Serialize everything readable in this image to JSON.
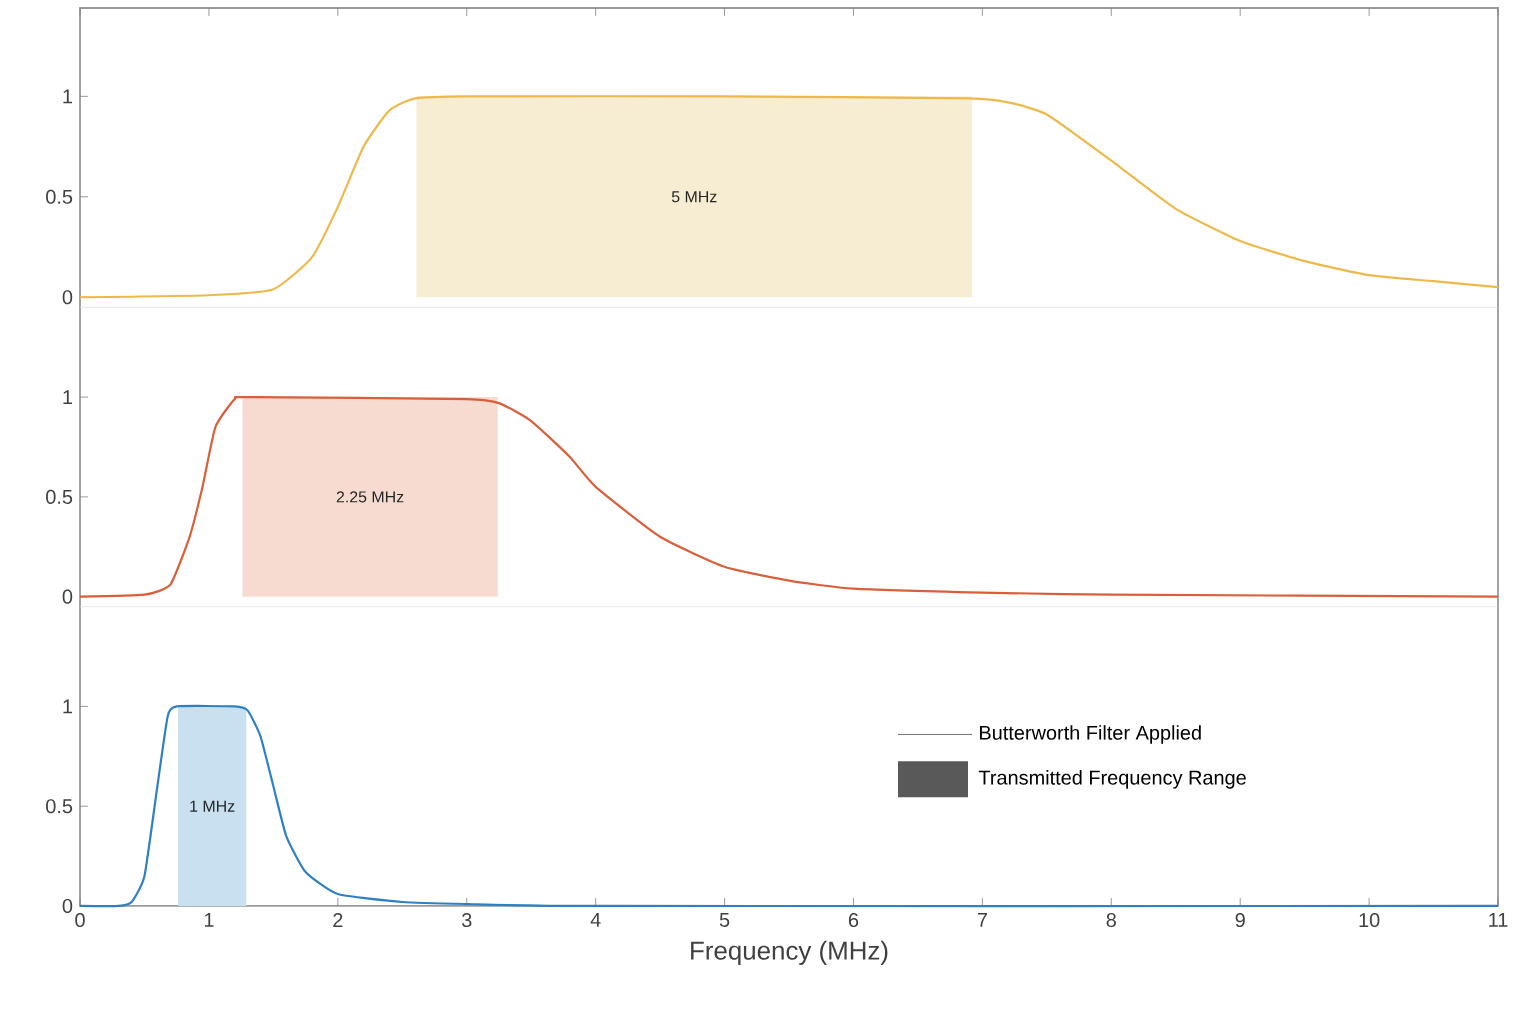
{
  "chart_data": [
    {
      "type": "line",
      "xlim": [
        0,
        11
      ],
      "xticks": [
        0,
        1,
        2,
        3,
        4,
        5,
        6,
        7,
        8,
        9,
        10,
        11
      ],
      "ylim": [
        -0.05,
        1.44
      ],
      "yticks": [
        0,
        0.5,
        1
      ],
      "tick_labels": "y",
      "bands": [
        {
          "axis": "x",
          "from": 2.61,
          "to": 6.92,
          "label": "5 MHz",
          "color": "#f7edd3"
        }
      ],
      "series": [
        {
          "color": "#edb94a",
          "x": [
            0,
            1,
            1.5,
            1.8,
            2.0,
            2.2,
            2.4,
            2.6,
            3,
            5,
            6.9,
            7.2,
            7.5,
            8,
            8.5,
            9,
            9.5,
            10,
            10.5,
            11
          ],
          "values": [
            0,
            0.01,
            0.04,
            0.2,
            0.45,
            0.75,
            0.93,
            0.99,
            1,
            1,
            0.99,
            0.97,
            0.91,
            0.68,
            0.44,
            0.28,
            0.18,
            0.11,
            0.08,
            0.05
          ]
        }
      ]
    },
    {
      "type": "line",
      "xlim": [
        0,
        11
      ],
      "xticks": [
        0,
        1,
        2,
        3,
        4,
        5,
        6,
        7,
        8,
        9,
        10,
        11
      ],
      "ylim": [
        -0.05,
        1.45
      ],
      "yticks": [
        0,
        0.5,
        1
      ],
      "tick_labels": "y",
      "bands": [
        {
          "axis": "x",
          "from": 1.26,
          "to": 3.24,
          "label": "2.25 MHz",
          "color": "#f7dbd0"
        }
      ],
      "series": [
        {
          "color": "#d95f3a",
          "x": [
            0,
            0.5,
            0.7,
            0.85,
            0.95,
            1.05,
            1.2,
            1.3,
            3,
            3.25,
            3.5,
            3.8,
            4,
            4.5,
            5,
            5.5,
            6,
            7,
            8,
            11
          ],
          "values": [
            0,
            0.01,
            0.06,
            0.3,
            0.55,
            0.85,
            0.99,
            1,
            0.99,
            0.97,
            0.88,
            0.7,
            0.55,
            0.3,
            0.15,
            0.08,
            0.04,
            0.02,
            0.01,
            0
          ]
        }
      ]
    },
    {
      "type": "line",
      "xlim": [
        0,
        11
      ],
      "xticks": [
        0,
        1,
        2,
        3,
        4,
        5,
        6,
        7,
        8,
        9,
        10,
        11
      ],
      "ylim": [
        0,
        1.5
      ],
      "yticks": [
        0,
        0.5,
        1
      ],
      "xlabel": "Frequency (MHz)",
      "annotations": [
        "Butterworth Filter Applied",
        "Transmitted Frequency Range"
      ],
      "bands": [
        {
          "axis": "x",
          "from": 0.76,
          "to": 1.29,
          "label": "1 MHz",
          "color": "#c9e0f1"
        }
      ],
      "series": [
        {
          "color": "#2f80c3",
          "x": [
            0,
            0.3,
            0.4,
            0.5,
            0.6,
            0.68,
            0.75,
            1.2,
            1.3,
            1.4,
            1.5,
            1.6,
            1.75,
            2,
            2.5,
            3,
            4,
            11
          ],
          "values": [
            0,
            0,
            0.02,
            0.15,
            0.6,
            0.95,
            1,
            1,
            0.98,
            0.85,
            0.6,
            0.35,
            0.17,
            0.06,
            0.02,
            0.01,
            0,
            0
          ]
        }
      ]
    }
  ]
}
